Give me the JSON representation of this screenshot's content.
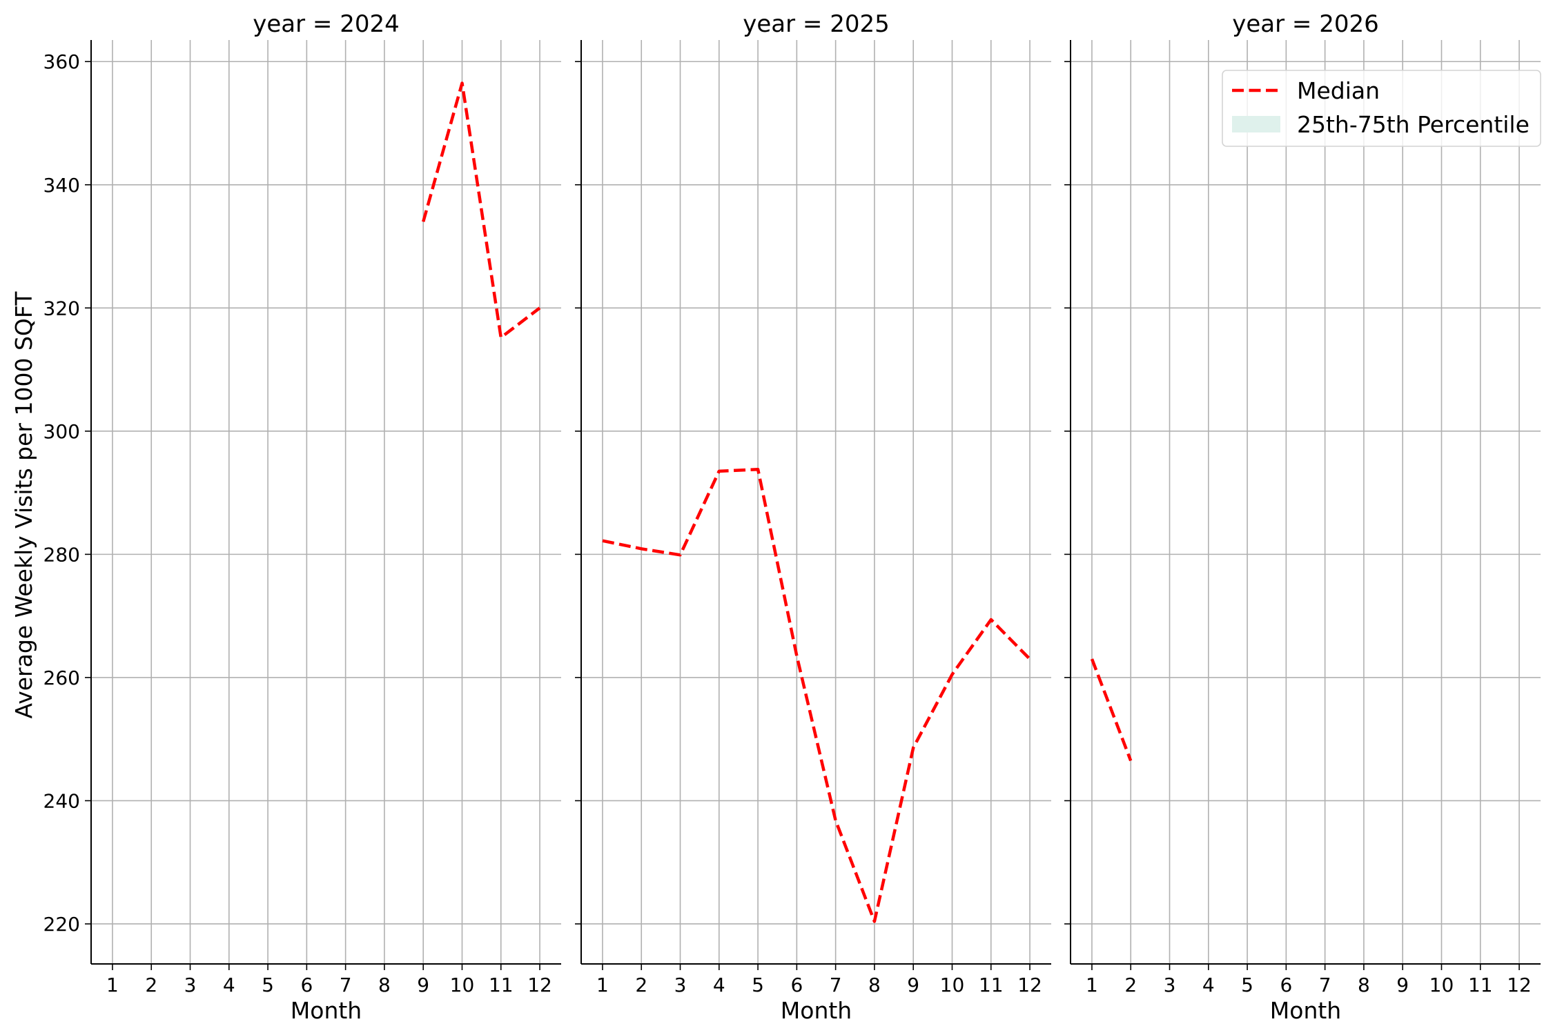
{
  "chart_data": {
    "type": "line",
    "ylabel": "Average Weekly Visits per 1000 SQFT",
    "ylim": [
      213.5,
      363.5
    ],
    "yticks": [
      220,
      240,
      260,
      280,
      300,
      320,
      340,
      360
    ],
    "xlim": [
      0.45,
      12.55
    ],
    "xticks": [
      1,
      2,
      3,
      4,
      5,
      6,
      7,
      8,
      9,
      10,
      11,
      12
    ],
    "grid": true,
    "legend": {
      "placement": "top-right",
      "entries": [
        {
          "label": "Median",
          "color": "#ff0000",
          "style": "dashed-line"
        },
        {
          "label": "25th-75th Percentile",
          "color": "#dff1ec",
          "style": "patch"
        }
      ]
    },
    "panels": [
      {
        "title": "year = 2024",
        "xlabel": "Month",
        "series": [
          {
            "name": "Median",
            "color": "#ff0000",
            "x": [
              9,
              10,
              11,
              12
            ],
            "y": [
              334.0,
              356.5,
              315.2,
              320.0
            ]
          }
        ]
      },
      {
        "title": "year = 2025",
        "xlabel": "Month",
        "series": [
          {
            "name": "Median",
            "color": "#ff0000",
            "x": [
              1,
              2,
              3,
              4,
              5,
              6,
              7,
              8,
              9,
              10,
              11,
              12
            ],
            "y": [
              282.2,
              280.9,
              279.9,
              293.5,
              293.8,
              263.5,
              236.8,
              220.4,
              248.6,
              260.5,
              269.4,
              263.0
            ]
          }
        ]
      },
      {
        "title": "year = 2026",
        "xlabel": "Month",
        "series": [
          {
            "name": "Median",
            "color": "#ff0000",
            "x": [
              1,
              2
            ],
            "y": [
              263.0,
              246.5
            ]
          }
        ]
      }
    ]
  }
}
